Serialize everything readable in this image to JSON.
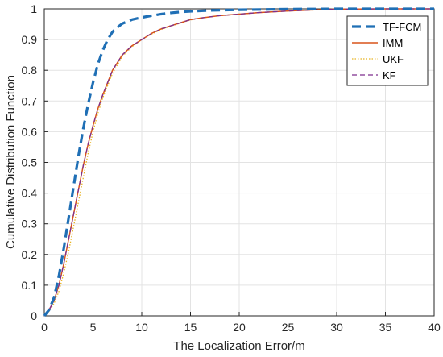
{
  "chart_data": {
    "type": "line",
    "title": "",
    "xlabel": "The Localization Error/m",
    "ylabel": "Cumulative Distribution Function",
    "xlim": [
      0,
      40
    ],
    "ylim": [
      0,
      1
    ],
    "xticks": [
      "0",
      "5",
      "10",
      "15",
      "20",
      "25",
      "30",
      "35",
      "40"
    ],
    "yticks": [
      "0",
      "0.1",
      "0.2",
      "0.3",
      "0.4",
      "0.5",
      "0.6",
      "0.7",
      "0.8",
      "0.9",
      "1"
    ],
    "grid": true,
    "legend_position": "top-right",
    "series": [
      {
        "name": "TF-FCM",
        "color": "#1f6fb5",
        "style": "dashed-thick",
        "x": [
          0,
          0.5,
          1,
          1.5,
          2,
          2.5,
          3,
          3.5,
          4,
          4.5,
          5,
          5.5,
          6,
          6.5,
          7,
          7.5,
          8,
          9,
          10,
          11,
          12,
          13,
          14,
          15,
          17,
          20,
          25,
          30,
          35,
          40
        ],
        "y": [
          0,
          0.02,
          0.06,
          0.13,
          0.22,
          0.32,
          0.42,
          0.52,
          0.61,
          0.69,
          0.76,
          0.82,
          0.865,
          0.9,
          0.925,
          0.94,
          0.952,
          0.965,
          0.972,
          0.978,
          0.983,
          0.987,
          0.99,
          0.992,
          0.995,
          0.997,
          0.999,
          1.0,
          1.0,
          1.0
        ]
      },
      {
        "name": "IMM",
        "color": "#d9541a",
        "style": "solid",
        "x": [
          0,
          0.5,
          1,
          1.5,
          2,
          2.5,
          3,
          3.5,
          4,
          4.5,
          5,
          5.5,
          6,
          7,
          8,
          9,
          10,
          11,
          12,
          13,
          14,
          15,
          16,
          18,
          20,
          22,
          25,
          28,
          30,
          35,
          40
        ],
        "y": [
          0,
          0.02,
          0.05,
          0.1,
          0.17,
          0.25,
          0.33,
          0.41,
          0.49,
          0.56,
          0.62,
          0.675,
          0.72,
          0.8,
          0.85,
          0.88,
          0.9,
          0.92,
          0.935,
          0.945,
          0.955,
          0.965,
          0.97,
          0.978,
          0.983,
          0.988,
          0.993,
          0.997,
          0.999,
          1.0,
          1.0
        ]
      },
      {
        "name": "UKF",
        "color": "#e8b320",
        "style": "dotted",
        "x": [
          0,
          0.5,
          1,
          1.5,
          2,
          2.5,
          3,
          3.5,
          4,
          4.5,
          5,
          5.5,
          6,
          7,
          8,
          9,
          10,
          11,
          12,
          13,
          14,
          15,
          16,
          18,
          20,
          22,
          25,
          28,
          30,
          35,
          40
        ],
        "y": [
          0,
          0.015,
          0.04,
          0.08,
          0.14,
          0.21,
          0.29,
          0.37,
          0.45,
          0.53,
          0.6,
          0.66,
          0.71,
          0.79,
          0.845,
          0.877,
          0.9,
          0.918,
          0.933,
          0.944,
          0.954,
          0.964,
          0.97,
          0.978,
          0.983,
          0.988,
          0.993,
          0.997,
          0.999,
          1.0,
          1.0
        ]
      },
      {
        "name": "KF",
        "color": "#7e2f8e",
        "style": "dashed",
        "x": [
          0,
          0.5,
          1,
          1.5,
          2,
          2.5,
          3,
          3.5,
          4,
          4.5,
          5,
          5.5,
          6,
          7,
          8,
          9,
          10,
          11,
          12,
          13,
          14,
          15,
          16,
          18,
          20,
          22,
          25,
          28,
          30,
          35,
          40
        ],
        "y": [
          0,
          0.02,
          0.05,
          0.1,
          0.17,
          0.25,
          0.33,
          0.41,
          0.49,
          0.56,
          0.62,
          0.675,
          0.72,
          0.8,
          0.85,
          0.88,
          0.9,
          0.92,
          0.935,
          0.945,
          0.955,
          0.965,
          0.97,
          0.978,
          0.983,
          0.988,
          0.993,
          0.997,
          0.999,
          1.0,
          1.0
        ]
      }
    ]
  }
}
